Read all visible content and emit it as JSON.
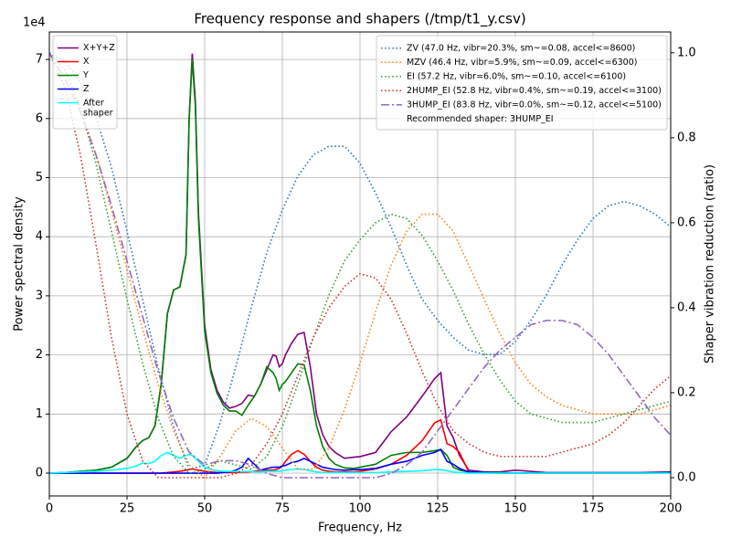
{
  "chart_data": {
    "type": "line",
    "title": "Frequency response and shapers (/tmp/t1_y.csv)",
    "x_label": "Frequency, Hz",
    "y_label": "Power spectral density",
    "y2_label": "Shaper vibration reduction (ratio)",
    "y_offset_label": "1e4",
    "xlim": [
      0,
      200
    ],
    "xticks": [
      0,
      25,
      50,
      75,
      100,
      125,
      150,
      175,
      200
    ],
    "ylim": [
      -0.386,
      7.465
    ],
    "yticks": [
      0,
      1,
      2,
      3,
      4,
      5,
      6,
      7
    ],
    "y2lim": [
      -0.043,
      1.049
    ],
    "y2ticks": [
      {
        "value": 0,
        "label": "0.0"
      },
      0.2,
      0.4,
      0.6,
      0.8,
      {
        "value": 1,
        "label": "1.0"
      }
    ],
    "grid": true,
    "legend": "upper left",
    "legend2": "upper right",
    "recommendation": "Recommended shaper: 3HUMP_EI",
    "series": [
      {
        "name": "X+Y+Z",
        "color": "#800080",
        "dash": "solid",
        "x": [
          0,
          5,
          10,
          15,
          20,
          25,
          28,
          30,
          32,
          34,
          36,
          38,
          40,
          42,
          44,
          45,
          46,
          47,
          48,
          50,
          52,
          54,
          56,
          58,
          60,
          62,
          64,
          66,
          68,
          70,
          72,
          73,
          74,
          75,
          76,
          78,
          80,
          82,
          84,
          86,
          88,
          90,
          92,
          95,
          98,
          100,
          105,
          110,
          115,
          120,
          124,
          126,
          128,
          130,
          132,
          135,
          140,
          145,
          150,
          160,
          170,
          180,
          190,
          200
        ],
        "values": [
          0,
          0.01,
          0.03,
          0.05,
          0.1,
          0.25,
          0.45,
          0.55,
          0.6,
          0.8,
          1.5,
          2.7,
          3.1,
          3.15,
          3.7,
          6.0,
          7.1,
          6.3,
          4.4,
          2.5,
          1.75,
          1.4,
          1.2,
          1.1,
          1.13,
          1.18,
          1.32,
          1.3,
          1.5,
          1.75,
          2.0,
          1.98,
          1.8,
          1.85,
          2.0,
          2.2,
          2.35,
          2.38,
          1.8,
          1.0,
          0.65,
          0.45,
          0.35,
          0.25,
          0.27,
          0.28,
          0.35,
          0.7,
          0.95,
          1.3,
          1.6,
          1.7,
          0.8,
          0.6,
          0.3,
          0.05,
          0.02,
          0.02,
          0.05,
          0.01,
          0.01,
          0.01,
          0.01,
          0.02
        ]
      },
      {
        "name": "X",
        "color": "#ff0000",
        "dash": "solid",
        "x": [
          0,
          5,
          10,
          15,
          20,
          25,
          28,
          30,
          32,
          34,
          36,
          38,
          40,
          42,
          44,
          45,
          46,
          47,
          48,
          50,
          52,
          54,
          56,
          58,
          60,
          62,
          64,
          66,
          68,
          70,
          72,
          73,
          74,
          75,
          76,
          78,
          80,
          82,
          84,
          86,
          88,
          90,
          92,
          95,
          98,
          100,
          105,
          110,
          115,
          120,
          124,
          126,
          128,
          130,
          132,
          135,
          140,
          145,
          150,
          160,
          170,
          180,
          190,
          200
        ],
        "values": [
          0,
          0,
          0,
          0,
          0,
          0,
          0,
          0,
          0,
          0,
          0,
          0.01,
          0.02,
          0.03,
          0.05,
          0.06,
          0.07,
          0.06,
          0.05,
          0.03,
          0.02,
          0.01,
          0.01,
          0.01,
          0.01,
          0.01,
          0.02,
          0.03,
          0.05,
          0.05,
          0.05,
          0.06,
          0.08,
          0.12,
          0.2,
          0.32,
          0.38,
          0.32,
          0.2,
          0.1,
          0.05,
          0.03,
          0.02,
          0.02,
          0.02,
          0.03,
          0.07,
          0.15,
          0.3,
          0.55,
          0.85,
          0.9,
          0.5,
          0.45,
          0.35,
          0.02,
          0.01,
          0,
          0,
          0,
          0,
          0,
          0,
          0.01
        ]
      },
      {
        "name": "Y",
        "color": "#008000",
        "dash": "solid",
        "x": [
          0,
          5,
          10,
          15,
          20,
          25,
          28,
          30,
          32,
          34,
          36,
          38,
          40,
          42,
          44,
          45,
          46,
          47,
          48,
          50,
          52,
          54,
          56,
          58,
          60,
          62,
          64,
          66,
          68,
          70,
          72,
          73,
          74,
          75,
          76,
          78,
          80,
          82,
          84,
          86,
          88,
          90,
          92,
          95,
          98,
          100,
          105,
          110,
          115,
          120,
          124,
          126,
          128,
          130,
          132,
          135,
          140,
          145,
          150,
          160,
          170,
          180,
          190,
          200
        ],
        "values": [
          0,
          0.01,
          0.03,
          0.05,
          0.1,
          0.25,
          0.45,
          0.55,
          0.6,
          0.8,
          1.5,
          2.7,
          3.1,
          3.15,
          3.7,
          6.0,
          7.0,
          6.2,
          4.3,
          2.4,
          1.7,
          1.35,
          1.15,
          1.05,
          1.05,
          0.98,
          1.15,
          1.3,
          1.5,
          1.8,
          1.7,
          1.6,
          1.4,
          1.5,
          1.55,
          1.7,
          1.85,
          1.83,
          1.4,
          0.8,
          0.45,
          0.25,
          0.15,
          0.09,
          0.08,
          0.1,
          0.15,
          0.3,
          0.35,
          0.35,
          0.38,
          0.4,
          0.3,
          0.1,
          0.05,
          0.02,
          0.01,
          0.01,
          0,
          0,
          0,
          0,
          0,
          0.01
        ]
      },
      {
        "name": "Z",
        "color": "#0000ff",
        "dash": "solid",
        "x": [
          0,
          5,
          10,
          15,
          20,
          25,
          28,
          30,
          32,
          34,
          36,
          38,
          40,
          42,
          44,
          45,
          46,
          47,
          48,
          50,
          52,
          54,
          56,
          58,
          60,
          62,
          64,
          66,
          68,
          70,
          72,
          73,
          74,
          75,
          76,
          78,
          80,
          82,
          84,
          86,
          88,
          90,
          92,
          95,
          98,
          100,
          105,
          110,
          115,
          120,
          124,
          126,
          128,
          130,
          132,
          135,
          140,
          145,
          150,
          160,
          170,
          180,
          190,
          200
        ],
        "values": [
          0,
          0,
          0,
          0,
          0,
          0,
          0,
          0,
          0,
          0,
          0,
          0,
          0,
          0,
          0,
          0,
          0,
          0,
          0,
          0,
          0,
          0,
          0.01,
          0.02,
          0.05,
          0.1,
          0.25,
          0.15,
          0.05,
          0.08,
          0.1,
          0.1,
          0.1,
          0.12,
          0.13,
          0.18,
          0.2,
          0.25,
          0.2,
          0.15,
          0.1,
          0.08,
          0.06,
          0.05,
          0.06,
          0.06,
          0.08,
          0.15,
          0.2,
          0.3,
          0.35,
          0.4,
          0.2,
          0.15,
          0.08,
          0.02,
          0.01,
          0,
          0,
          0,
          0,
          0,
          0,
          0.01
        ]
      },
      {
        "name": "After\nshaper",
        "color": "#00ffff",
        "dash": "solid",
        "x": [
          0,
          5,
          10,
          15,
          20,
          25,
          28,
          30,
          32,
          34,
          36,
          38,
          40,
          42,
          44,
          45,
          46,
          47,
          48,
          50,
          52,
          54,
          56,
          58,
          60,
          62,
          64,
          66,
          68,
          70,
          72,
          73,
          74,
          75,
          76,
          78,
          80,
          82,
          84,
          86,
          88,
          90,
          92,
          95,
          98,
          100,
          105,
          110,
          115,
          120,
          124,
          126,
          128,
          130,
          132,
          135,
          140,
          145,
          150,
          160,
          170,
          180,
          190,
          200
        ],
        "values": [
          0,
          0.01,
          0.02,
          0.03,
          0.05,
          0.08,
          0.12,
          0.17,
          0.16,
          0.2,
          0.3,
          0.35,
          0.3,
          0.25,
          0.3,
          0.32,
          0.3,
          0.25,
          0.2,
          0.1,
          0.06,
          0.04,
          0.03,
          0.03,
          0.03,
          0.02,
          0.03,
          0.02,
          0.02,
          0.03,
          0.03,
          0.03,
          0.03,
          0.04,
          0.05,
          0.06,
          0.07,
          0.06,
          0.04,
          0.02,
          0.01,
          0.01,
          0.01,
          0.01,
          0.01,
          0.01,
          0.01,
          0.02,
          0.03,
          0.04,
          0.06,
          0.06,
          0.04,
          0.02,
          0.01,
          0,
          0,
          0,
          0,
          0,
          0,
          0,
          0,
          0
        ]
      },
      {
        "name": "ZV (47.0 Hz, vibr=20.3%, sm~=0.08, accel<=8600)",
        "color": "#1f77b4",
        "dash": "dotted",
        "axis": "y2",
        "x": [
          0,
          5,
          10,
          15,
          20,
          25,
          30,
          35,
          40,
          45,
          50,
          55,
          60,
          65,
          70,
          75,
          80,
          85,
          90,
          95,
          100,
          105,
          110,
          115,
          120,
          125,
          130,
          135,
          140,
          145,
          150,
          155,
          160,
          165,
          170,
          175,
          180,
          185,
          190,
          195,
          200
        ],
        "values": [
          1.0,
          0.98,
          0.93,
          0.85,
          0.73,
          0.58,
          0.42,
          0.26,
          0.12,
          0.02,
          0.03,
          0.13,
          0.26,
          0.4,
          0.53,
          0.63,
          0.71,
          0.76,
          0.78,
          0.78,
          0.74,
          0.67,
          0.59,
          0.5,
          0.42,
          0.37,
          0.33,
          0.3,
          0.29,
          0.29,
          0.32,
          0.37,
          0.43,
          0.5,
          0.56,
          0.61,
          0.64,
          0.65,
          0.64,
          0.62,
          0.59
        ]
      },
      {
        "name": "MZV (46.4 Hz, vibr=5.9%, sm~=0.09, accel<=6300)",
        "color": "#ff7f0e",
        "dash": "dotted",
        "axis": "y2",
        "x": [
          0,
          5,
          10,
          15,
          20,
          25,
          30,
          35,
          40,
          45,
          50,
          55,
          60,
          65,
          70,
          75,
          80,
          85,
          90,
          95,
          100,
          105,
          110,
          115,
          120,
          125,
          130,
          135,
          140,
          145,
          150,
          155,
          160,
          165,
          170,
          175,
          180,
          185,
          190,
          195,
          200
        ],
        "values": [
          1.0,
          0.96,
          0.87,
          0.76,
          0.63,
          0.49,
          0.35,
          0.22,
          0.11,
          0.03,
          0,
          0.05,
          0.11,
          0.14,
          0.12,
          0.07,
          0.02,
          0.02,
          0.07,
          0.16,
          0.27,
          0.39,
          0.5,
          0.58,
          0.62,
          0.62,
          0.58,
          0.5,
          0.42,
          0.34,
          0.27,
          0.22,
          0.19,
          0.17,
          0.16,
          0.15,
          0.15,
          0.15,
          0.15,
          0.16,
          0.17
        ]
      },
      {
        "name": "EI (57.2 Hz, vibr=6.0%, sm~=0.10, accel<=6100)",
        "color": "#2ca02c",
        "dash": "dotted",
        "axis": "y2",
        "x": [
          0,
          5,
          10,
          15,
          20,
          25,
          30,
          35,
          40,
          45,
          50,
          55,
          60,
          65,
          70,
          75,
          80,
          85,
          90,
          95,
          100,
          105,
          110,
          115,
          120,
          125,
          130,
          135,
          140,
          145,
          150,
          155,
          160,
          165,
          170,
          175,
          180,
          185,
          190,
          195,
          200
        ],
        "values": [
          1.0,
          0.96,
          0.87,
          0.74,
          0.58,
          0.42,
          0.27,
          0.14,
          0.05,
          0.01,
          0.02,
          0.04,
          0.03,
          0.02,
          0.05,
          0.12,
          0.22,
          0.33,
          0.43,
          0.51,
          0.56,
          0.6,
          0.62,
          0.61,
          0.57,
          0.51,
          0.44,
          0.36,
          0.29,
          0.23,
          0.18,
          0.15,
          0.14,
          0.13,
          0.13,
          0.13,
          0.14,
          0.15,
          0.16,
          0.17,
          0.18
        ]
      },
      {
        "name": "2HUMP_EI (52.8 Hz, vibr=0.4%, sm~=0.19, accel<=3100)",
        "color": "#d62728",
        "dash": "dotted",
        "axis": "y2",
        "x": [
          0,
          5,
          10,
          15,
          20,
          25,
          30,
          35,
          40,
          45,
          50,
          55,
          60,
          65,
          70,
          75,
          80,
          85,
          90,
          95,
          100,
          105,
          110,
          115,
          120,
          125,
          130,
          135,
          140,
          145,
          150,
          155,
          160,
          165,
          170,
          175,
          180,
          185,
          190,
          195,
          200
        ],
        "values": [
          1.0,
          0.92,
          0.76,
          0.55,
          0.33,
          0.15,
          0.04,
          0,
          0,
          0,
          0,
          0,
          0.01,
          0.03,
          0.08,
          0.15,
          0.24,
          0.33,
          0.4,
          0.45,
          0.48,
          0.47,
          0.42,
          0.34,
          0.25,
          0.17,
          0.11,
          0.08,
          0.06,
          0.05,
          0.05,
          0.05,
          0.05,
          0.06,
          0.07,
          0.08,
          0.1,
          0.13,
          0.17,
          0.21,
          0.24
        ]
      },
      {
        "name": "3HUMP_EI (83.8 Hz, vibr=0.0%, sm~=0.12, accel<=5100)",
        "color": "#9467bd",
        "dash": "dashdot",
        "axis": "y2",
        "x": [
          0,
          5,
          10,
          15,
          20,
          25,
          30,
          35,
          40,
          45,
          50,
          55,
          60,
          65,
          70,
          75,
          80,
          85,
          90,
          95,
          100,
          105,
          110,
          115,
          120,
          125,
          130,
          135,
          140,
          145,
          150,
          155,
          160,
          165,
          170,
          175,
          180,
          185,
          190,
          195,
          200
        ],
        "values": [
          1.0,
          0.94,
          0.86,
          0.76,
          0.64,
          0.51,
          0.38,
          0.25,
          0.14,
          0.06,
          0.03,
          0.04,
          0.04,
          0.03,
          0.01,
          0,
          0,
          0,
          0,
          0,
          0,
          0,
          0.01,
          0.03,
          0.06,
          0.11,
          0.16,
          0.21,
          0.26,
          0.3,
          0.33,
          0.36,
          0.37,
          0.37,
          0.36,
          0.33,
          0.29,
          0.24,
          0.19,
          0.14,
          0.1
        ]
      }
    ]
  }
}
